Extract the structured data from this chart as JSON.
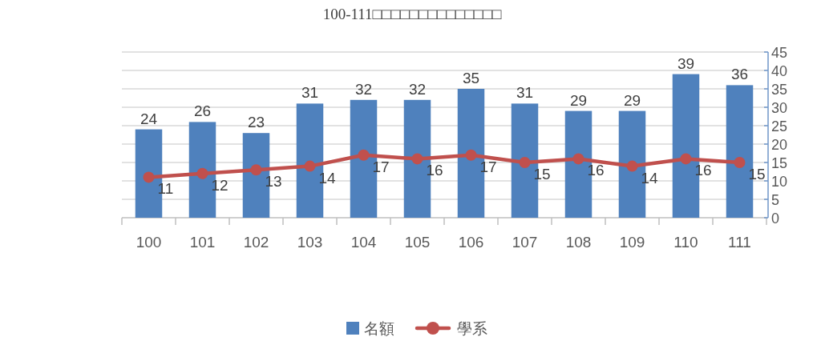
{
  "chart_data": {
    "type": "bar",
    "title": "100-111□□□□□□□□□□□□□□",
    "categories": [
      "100",
      "101",
      "102",
      "103",
      "104",
      "105",
      "106",
      "107",
      "108",
      "109",
      "110",
      "111"
    ],
    "series": [
      {
        "name": "名額",
        "color": "#4f81bd",
        "values": [
          24,
          26,
          23,
          31,
          32,
          32,
          35,
          31,
          29,
          29,
          39,
          36
        ]
      },
      {
        "name": "學系",
        "type": "line",
        "color": "#c0504d",
        "values": [
          11,
          12,
          13,
          14,
          17,
          16,
          17,
          15,
          16,
          14,
          16,
          15
        ]
      }
    ],
    "ylim": [
      0,
      45
    ],
    "yticks": [
      0,
      5,
      10,
      15,
      20,
      25,
      30,
      35,
      40,
      45
    ],
    "grid": "y",
    "legend": "bottom",
    "marker": "circle",
    "line_style": "solid",
    "data_labels": true
  }
}
